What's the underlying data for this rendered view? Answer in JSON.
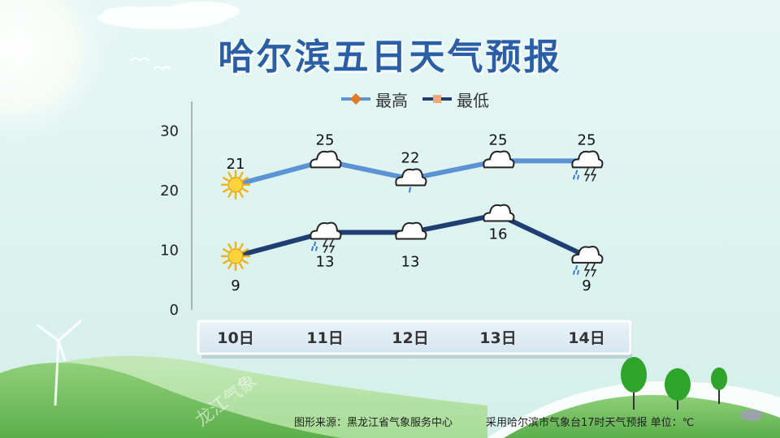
{
  "title": "哈尔滨五日天气预报",
  "footer": {
    "source": "图形来源：黑龙江省气象服务中心",
    "note": "采用哈尔滨市气象台17时天气预报 单位：℃"
  },
  "watermark": "龙江气象",
  "colors": {
    "high": "#5b93d4",
    "low": "#1f3f73",
    "title": "#2a5fa8"
  },
  "chart_data": {
    "type": "line",
    "categories": [
      "10日",
      "11日",
      "12日",
      "13日",
      "14日"
    ],
    "series": [
      {
        "name": "最高",
        "values": [
          21,
          25,
          22,
          25,
          25
        ]
      },
      {
        "name": "最低",
        "values": [
          9,
          13,
          13,
          16,
          9
        ]
      }
    ],
    "ylim": [
      0,
      35
    ],
    "yticks": [
      0,
      10,
      20,
      30
    ],
    "legend": "top",
    "grid": false,
    "weather_icons": {
      "high": [
        "sun-icon",
        "cloud-icon",
        "cloud-drizzle-icon",
        "cloud-icon",
        "thunderstorm-icon"
      ],
      "low": [
        "sun-icon",
        "thunderstorm-icon",
        "cloud-icon",
        "cloud-icon",
        "thunderstorm-icon"
      ]
    }
  }
}
